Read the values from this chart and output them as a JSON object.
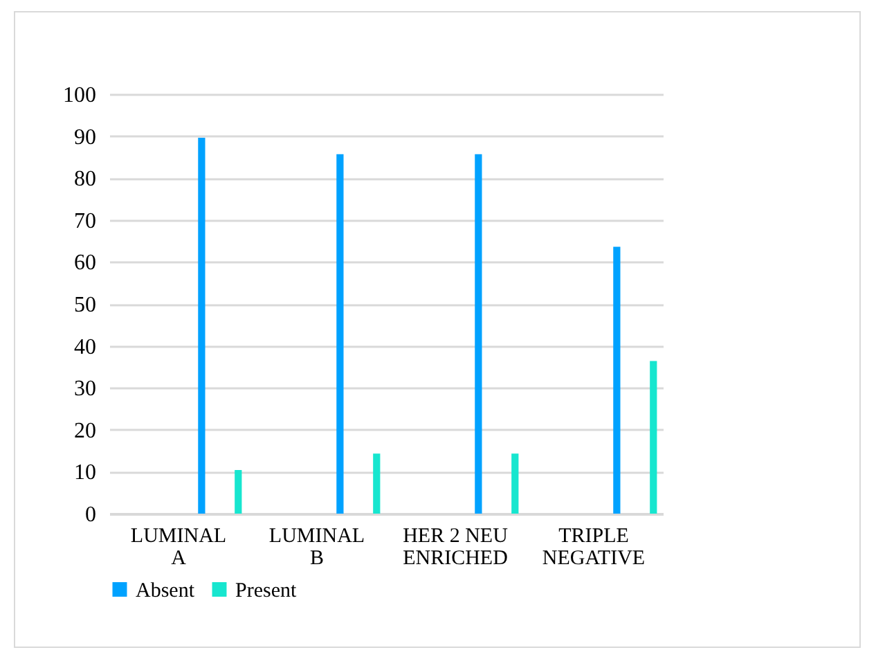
{
  "chart_data": {
    "type": "bar",
    "categories": [
      "LUMINAL A",
      "LUMINAL B",
      "HER 2 NEU ENRICHED",
      "TRIPLE NEGATIVE"
    ],
    "series": [
      {
        "name": "Absent",
        "color": "#00a2ff",
        "values": [
          89.6,
          85.7,
          85.7,
          63.6
        ]
      },
      {
        "name": "Present",
        "color": "#17e6cf",
        "values": [
          10.4,
          14.3,
          14.3,
          36.4
        ]
      }
    ],
    "ylim": [
      0,
      100
    ],
    "yticks": [
      0,
      10,
      20,
      30,
      40,
      50,
      60,
      70,
      80,
      90,
      100
    ],
    "grid": "y",
    "legend": "bottom"
  }
}
